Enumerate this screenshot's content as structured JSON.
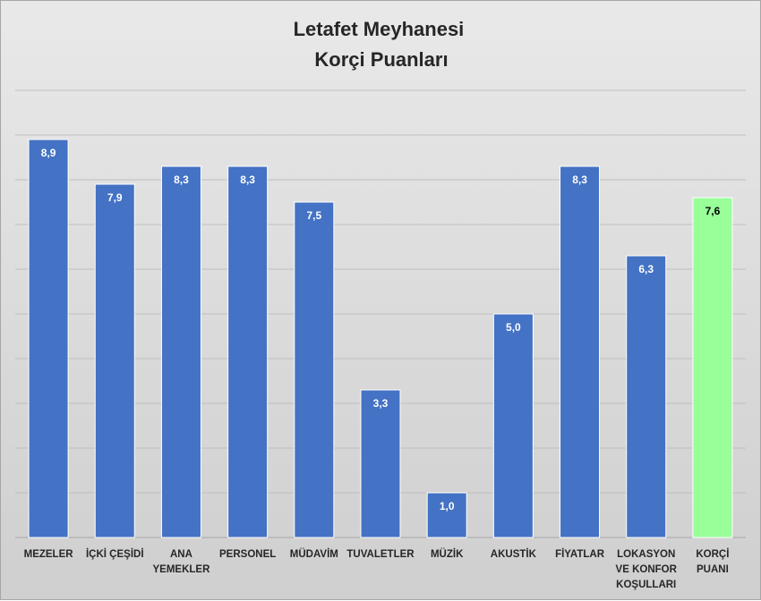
{
  "chart_data": {
    "type": "bar",
    "title": [
      "Letafet Meyhanesi",
      "Korçi Puanları"
    ],
    "categories": [
      [
        "MEZELER"
      ],
      [
        "İÇKİ ÇEŞİDİ"
      ],
      [
        "ANA",
        "YEMEKLER"
      ],
      [
        "PERSONEL"
      ],
      [
        "MÜDAVİM"
      ],
      [
        "TUVALETLER"
      ],
      [
        "MÜZİK"
      ],
      [
        "AKUSTİK"
      ],
      [
        "FİYATLAR"
      ],
      [
        "LOKASYON",
        "VE KONFOR",
        "KOŞULLARI"
      ],
      [
        "KORÇİ",
        "PUANI"
      ]
    ],
    "values": [
      8.9,
      7.9,
      8.3,
      8.3,
      7.5,
      3.3,
      1.0,
      5.0,
      8.3,
      6.3,
      7.6
    ],
    "value_labels": [
      "8,9",
      "7,9",
      "8,3",
      "8,3",
      "7,5",
      "3,3",
      "1,0",
      "5,0",
      "8,3",
      "6,3",
      "7,6"
    ],
    "ylim": [
      0,
      10
    ],
    "xlabel": "",
    "ylabel": "",
    "grid": true,
    "colors": {
      "bar": "#4472c4",
      "highlight_bar": "#99ff99",
      "highlight_index": 10,
      "label_on_bar": "#ffffff",
      "label_on_highlight": "#000000",
      "gridline": "#bfbfbf"
    }
  }
}
